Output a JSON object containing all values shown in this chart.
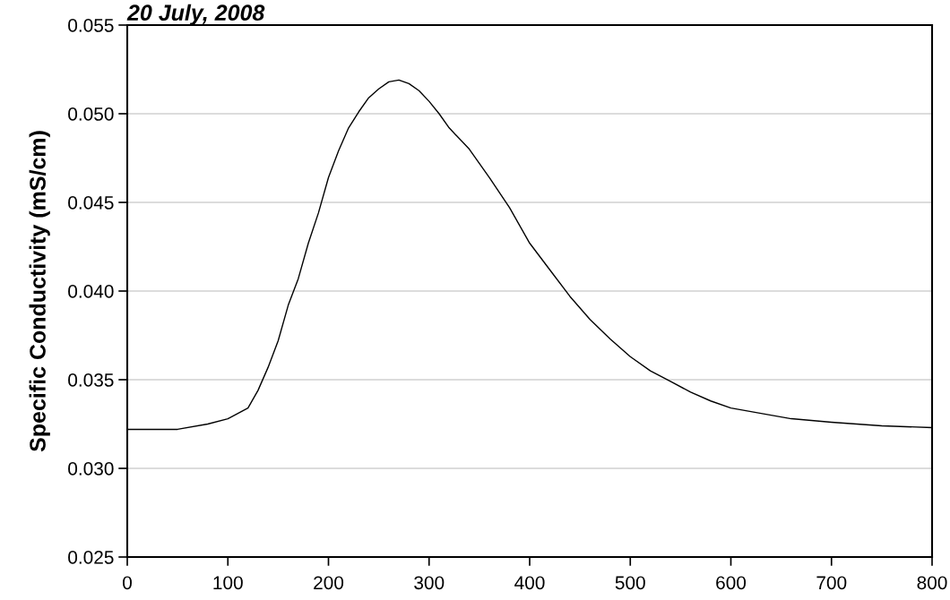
{
  "chart_data": {
    "type": "line",
    "title": "20 July, 2008",
    "ylabel": "Specific Conductivity (mS/cm)",
    "x": [
      0,
      50,
      80,
      100,
      110,
      120,
      130,
      140,
      150,
      160,
      170,
      180,
      190,
      200,
      210,
      220,
      230,
      240,
      250,
      260,
      270,
      280,
      290,
      300,
      310,
      320,
      340,
      360,
      380,
      400,
      420,
      440,
      460,
      480,
      500,
      520,
      540,
      560,
      580,
      600,
      630,
      660,
      700,
      750,
      800
    ],
    "series": [
      {
        "color": "#000000",
        "values": [
          0.0322,
          0.0322,
          0.0325,
          0.0328,
          0.0331,
          0.0334,
          0.0344,
          0.0357,
          0.0372,
          0.0392,
          0.0407,
          0.0427,
          0.0444,
          0.0464,
          0.0479,
          0.0492,
          0.0501,
          0.0509,
          0.0514,
          0.0518,
          0.0519,
          0.0517,
          0.0513,
          0.0507,
          0.05,
          0.0492,
          0.048,
          0.0464,
          0.0447,
          0.0427,
          0.0412,
          0.0397,
          0.0384,
          0.0373,
          0.0363,
          0.0355,
          0.0349,
          0.0343,
          0.0338,
          0.0334,
          0.0331,
          0.0328,
          0.0326,
          0.0324,
          0.0323
        ]
      }
    ],
    "xlim": [
      0,
      800
    ],
    "xticks": [
      0,
      100,
      200,
      300,
      400,
      500,
      600,
      700,
      800
    ],
    "ylim": [
      0.025,
      0.055
    ],
    "yticks": [
      {
        "value": 0.025,
        "label": "0.025"
      },
      {
        "value": 0.03,
        "label": "0.030"
      },
      {
        "value": 0.035,
        "label": "0.035"
      },
      {
        "value": 0.04,
        "label": "0.040"
      },
      {
        "value": 0.045,
        "label": "0.045"
      },
      {
        "value": 0.05,
        "label": "0.050"
      },
      {
        "value": 0.055,
        "label": "0.055"
      }
    ],
    "grid": "y",
    "line_style": "solid"
  }
}
